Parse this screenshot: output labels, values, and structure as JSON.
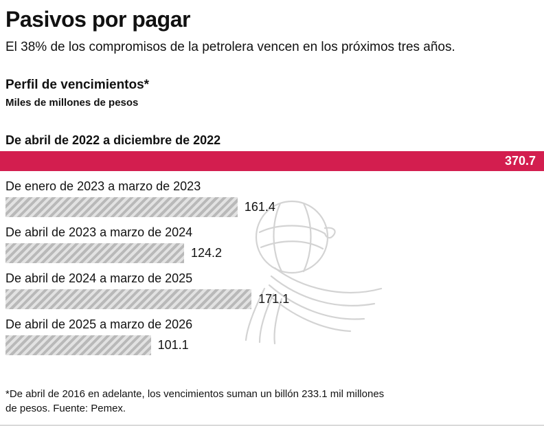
{
  "page": {
    "title": "Pasivos por pagar",
    "subtitle": "El 38% de los compromisos de la petrolera vencen en los próximos tres años.",
    "section_title": "Perfil de vencimientos*",
    "units_label": "Miles de millones de pesos",
    "footnote": "*De abril de 2016 en adelante, los vencimientos suman un billón 233.1 mil millones de pesos. Fuente: Pemex."
  },
  "colors": {
    "highlight_bar": "#d31e4f",
    "gray_bar_dark": "#b9b9b9",
    "gray_bar_light": "#e2e2e2",
    "text": "#111111"
  },
  "chart_data": {
    "type": "bar",
    "orientation": "horizontal",
    "title": "Perfil de vencimientos*",
    "units": "Miles de millones de pesos",
    "categories": [
      "De abril de 2022 a diciembre de 2022",
      "De enero de 2023 a marzo de 2023",
      "De abril de 2023 a marzo de 2024",
      "De abril de 2024 a marzo de 2025",
      "De abril de 2025 a marzo de 2026"
    ],
    "values": [
      370.7,
      161.4,
      124.2,
      171.1,
      101.1
    ],
    "value_labels": [
      "370.7",
      "161.4",
      "124.2",
      "171.1",
      "101.1"
    ],
    "max_value": 370.7,
    "highlight_index": 0,
    "xlim": [
      0,
      370.7
    ],
    "grid": false,
    "legend": "none"
  }
}
